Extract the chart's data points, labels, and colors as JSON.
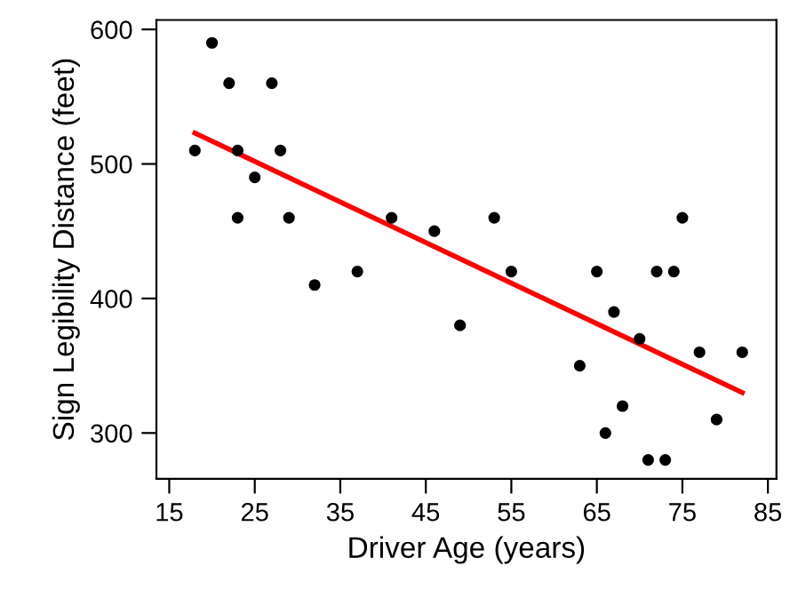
{
  "chart_data": {
    "type": "scatter",
    "xlabel": "Driver Age (years)",
    "ylabel": "Sign Legibility Distance (feet)",
    "xlim": [
      13.5,
      86
    ],
    "ylim": [
      266,
      607
    ],
    "xticks": [
      15,
      25,
      35,
      45,
      55,
      65,
      75,
      85
    ],
    "yticks": [
      300,
      400,
      500,
      600
    ],
    "grid": false,
    "marker": "circle",
    "series": [
      {
        "color": "#000000",
        "x": [
          18,
          20,
          22,
          23,
          23,
          25,
          27,
          28,
          29,
          32,
          37,
          41,
          46,
          49,
          53,
          55,
          63,
          65,
          66,
          67,
          68,
          70,
          71,
          72,
          73,
          74,
          75,
          77,
          79,
          82
        ],
        "values": [
          510,
          590,
          560,
          510,
          460,
          490,
          560,
          510,
          460,
          410,
          420,
          460,
          450,
          380,
          460,
          420,
          350,
          420,
          300,
          390,
          320,
          370,
          280,
          420,
          280,
          420,
          460,
          360,
          310,
          360
        ]
      },
      {
        "type": "line",
        "color": "#ff0000",
        "x": [
          18,
          82
        ],
        "values": [
          523,
          330
        ],
        "marker": "none"
      }
    ]
  }
}
